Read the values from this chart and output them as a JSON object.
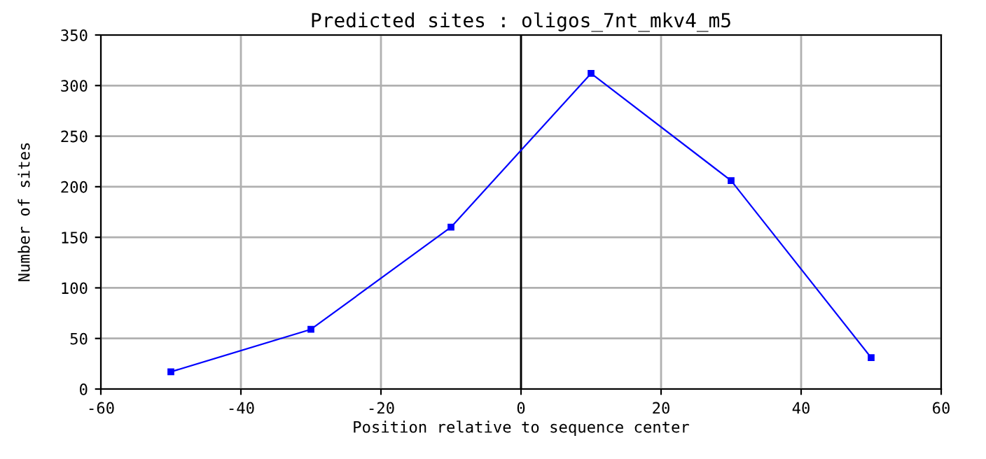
{
  "chart_data": {
    "type": "line",
    "title": "Predicted sites : oligos_7nt_mkv4_m5",
    "xlabel": "Position relative to sequence center",
    "ylabel": "Number of sites",
    "x": [
      -50,
      -30,
      -10,
      10,
      30,
      50
    ],
    "series": [
      {
        "color": "#0000ff",
        "values": [
          17,
          59,
          160,
          312,
          206,
          31
        ]
      }
    ],
    "xlim": [
      -60,
      60
    ],
    "xticks": [
      -60,
      -40,
      -20,
      0,
      20,
      40,
      60
    ],
    "ylim": [
      0,
      350
    ],
    "yticks": [
      0,
      50,
      100,
      150,
      200,
      250,
      300,
      350
    ],
    "grid": true,
    "marker": "square",
    "line_style": "solid",
    "ref_lines": [
      {
        "axis": "x",
        "value": 0,
        "color": "#000000"
      }
    ]
  }
}
